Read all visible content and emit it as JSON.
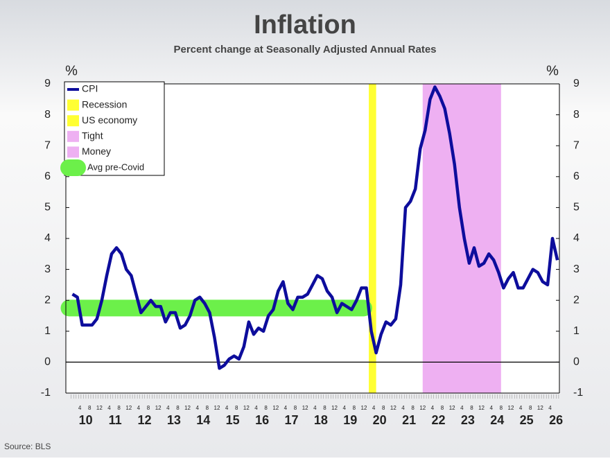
{
  "chart_data": {
    "type": "line",
    "title": "Inflation",
    "subtitle": "Percent change at Seasonally Adjusted  Annual Rates",
    "y_unit_label": "%",
    "y2_unit_label": "%",
    "source": "Source: BLS",
    "x": [
      "2010-01",
      "2010-03",
      "2010-05",
      "2010-07",
      "2010-09",
      "2010-11",
      "2011-01",
      "2011-03",
      "2011-05",
      "2011-07",
      "2011-09",
      "2011-11",
      "2012-01",
      "2012-03",
      "2012-05",
      "2012-07",
      "2012-09",
      "2012-11",
      "2013-01",
      "2013-03",
      "2013-05",
      "2013-07",
      "2013-09",
      "2013-11",
      "2014-01",
      "2014-03",
      "2014-05",
      "2014-07",
      "2014-09",
      "2014-11",
      "2015-01",
      "2015-03",
      "2015-05",
      "2015-07",
      "2015-09",
      "2015-11",
      "2016-01",
      "2016-03",
      "2016-05",
      "2016-07",
      "2016-09",
      "2016-11",
      "2017-01",
      "2017-03",
      "2017-05",
      "2017-07",
      "2017-09",
      "2017-11",
      "2018-01",
      "2018-03",
      "2018-05",
      "2018-07",
      "2018-09",
      "2018-11",
      "2019-01",
      "2019-03",
      "2019-05",
      "2019-07",
      "2019-09",
      "2019-11",
      "2020-01",
      "2020-03",
      "2020-05",
      "2020-07",
      "2020-09",
      "2020-11",
      "2021-01",
      "2021-03",
      "2021-05",
      "2021-07",
      "2021-09",
      "2021-11",
      "2022-01",
      "2022-03",
      "2022-05",
      "2022-07",
      "2022-09",
      "2022-11",
      "2023-01",
      "2023-03",
      "2023-05",
      "2023-07",
      "2023-09",
      "2023-11",
      "2024-01",
      "2024-03",
      "2024-05",
      "2024-07",
      "2024-09",
      "2024-11",
      "2025-01",
      "2025-03",
      "2025-05",
      "2025-07",
      "2025-09",
      "2025-11",
      "2026-01",
      "2026-03",
      "2026-05",
      "2026-07"
    ],
    "series": [
      {
        "name": "CPI",
        "color": "#0d0d9c",
        "values": [
          2.2,
          2.1,
          1.2,
          1.2,
          1.2,
          1.4,
          2.0,
          2.8,
          3.5,
          3.7,
          3.5,
          3.0,
          2.8,
          2.2,
          1.6,
          1.8,
          2.0,
          1.8,
          1.8,
          1.3,
          1.6,
          1.6,
          1.1,
          1.2,
          1.5,
          2.0,
          2.1,
          1.9,
          1.6,
          0.8,
          -0.2,
          -0.1,
          0.1,
          0.2,
          0.1,
          0.5,
          1.3,
          0.9,
          1.1,
          1.0,
          1.5,
          1.7,
          2.3,
          2.6,
          1.9,
          1.7,
          2.1,
          2.1,
          2.2,
          2.5,
          2.8,
          2.7,
          2.3,
          2.1,
          1.6,
          1.9,
          1.8,
          1.7,
          2.0,
          2.4,
          2.4,
          1.0,
          0.3,
          0.9,
          1.3,
          1.2,
          1.4,
          2.5,
          5.0,
          5.2,
          5.6,
          6.9,
          7.5,
          8.5,
          8.9,
          8.6,
          8.2,
          7.4,
          6.4,
          5.0,
          4.0,
          3.2,
          3.7,
          3.1,
          3.2,
          3.5,
          3.3,
          2.9,
          2.4,
          2.7,
          2.9,
          2.4,
          2.4,
          2.7,
          3.0,
          2.9,
          2.6,
          2.5,
          4.0,
          3.3
        ]
      }
    ],
    "shaded_periods": [
      {
        "labels": [
          "Recession",
          "US economy"
        ],
        "start": "2020-02",
        "end": "2020-05",
        "color": "#ffff33"
      },
      {
        "labels": [
          "Tight",
          "Money"
        ],
        "start": "2021-12",
        "end": "2024-08",
        "color": "#eeb0f2"
      }
    ],
    "reference_band": {
      "label": "Avg pre-Covid",
      "value": 1.75,
      "start": "2010-01",
      "end": "2019-12",
      "color": "#6cf04a"
    },
    "x_year_labels": [
      "10",
      "11",
      "12",
      "13",
      "14",
      "15",
      "16",
      "17",
      "18",
      "19",
      "20",
      "21",
      "22",
      "23",
      "24",
      "25",
      "26"
    ],
    "x_month_labels": [
      4,
      8,
      12
    ],
    "ylim": [
      -1,
      9
    ],
    "yticks": [
      -1,
      0,
      1,
      2,
      3,
      4,
      5,
      6,
      7,
      8,
      9
    ],
    "y2lim": [
      -1,
      9
    ],
    "y2ticks": [
      -1,
      0,
      1,
      2,
      3,
      4,
      5,
      6,
      7,
      8,
      9
    ],
    "zero_line": true,
    "legend": "upper left"
  }
}
